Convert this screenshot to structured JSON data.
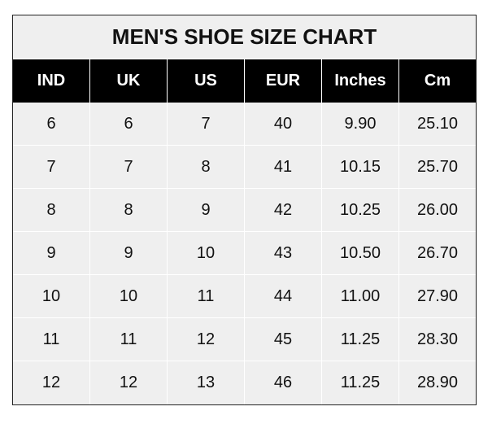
{
  "title": "MEN'S SHOE SIZE CHART",
  "headers": [
    "IND",
    "UK",
    "US",
    "EUR",
    "Inches",
    "Cm"
  ],
  "rows": [
    [
      "6",
      "6",
      "7",
      "40",
      "9.90",
      "25.10"
    ],
    [
      "7",
      "7",
      "8",
      "41",
      "10.15",
      "25.70"
    ],
    [
      "8",
      "8",
      "9",
      "42",
      "10.25",
      "26.00"
    ],
    [
      "9",
      "9",
      "10",
      "43",
      "10.50",
      "26.70"
    ],
    [
      "10",
      "10",
      "11",
      "44",
      "11.00",
      "27.90"
    ],
    [
      "11",
      "11",
      "12",
      "45",
      "11.25",
      "28.30"
    ],
    [
      "12",
      "12",
      "13",
      "46",
      "11.25",
      "28.90"
    ]
  ],
  "colors": {
    "header_bg": "#000000",
    "cell_bg": "#efefef"
  }
}
